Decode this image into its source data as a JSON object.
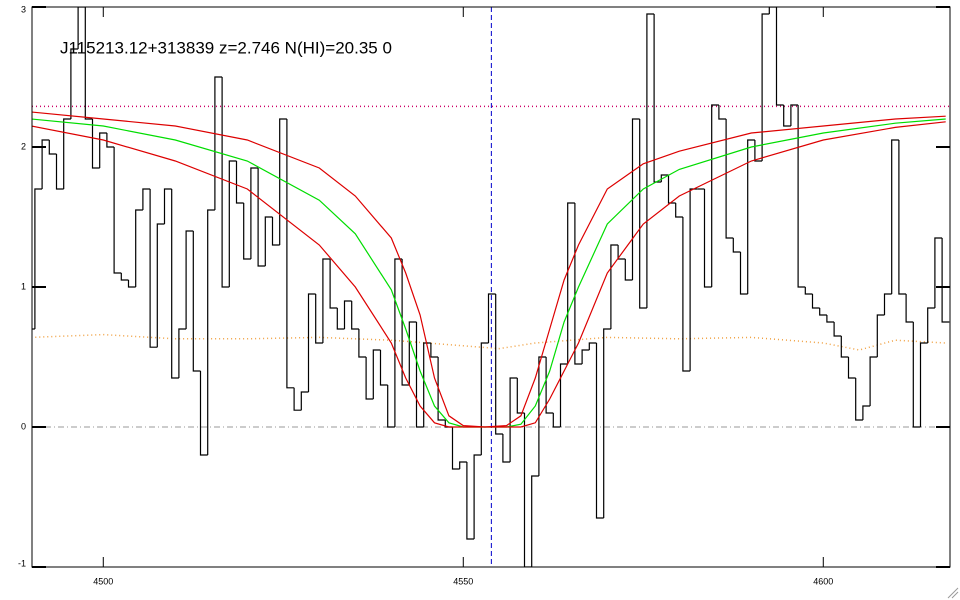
{
  "chart_data": {
    "type": "step",
    "title": "J115213.12+313839 z=2.746 N(HI)=20.35 0",
    "xlim": [
      4490.1,
      4617.6
    ],
    "ylim": [
      -1,
      3
    ],
    "xticks": [
      4500,
      4550,
      4600
    ],
    "yticks": [
      -1,
      0,
      1,
      2,
      3
    ],
    "x": [
      4490,
      4491,
      4492,
      4493,
      4494,
      4495,
      4496,
      4497,
      4498,
      4499,
      4500,
      4501,
      4502,
      4503,
      4504,
      4505,
      4506,
      4507,
      4508,
      4509,
      4510,
      4511,
      4512,
      4513,
      4514,
      4515,
      4516,
      4517,
      4518,
      4519,
      4520,
      4521,
      4522,
      4523,
      4524,
      4525,
      4526,
      4527,
      4528,
      4529,
      4530,
      4531,
      4532,
      4533,
      4534,
      4535,
      4536,
      4537,
      4538,
      4539,
      4540,
      4541,
      4542,
      4543,
      4544,
      4545,
      4546,
      4547,
      4548,
      4549,
      4550,
      4551,
      4552,
      4553,
      4554,
      4555,
      4556,
      4557,
      4558,
      4559,
      4560,
      4561,
      4562,
      4563,
      4564,
      4565,
      4566,
      4567,
      4568,
      4569,
      4570,
      4571,
      4572,
      4573,
      4574,
      4575,
      4576,
      4577,
      4578,
      4579,
      4580,
      4581,
      4582,
      4583,
      4584,
      4585,
      4586,
      4587,
      4588,
      4589,
      4590,
      4591,
      4592,
      4593,
      4594,
      4595,
      4596,
      4597,
      4598,
      4599,
      4600,
      4601,
      4602,
      4603,
      4604,
      4605,
      4606,
      4607,
      4608,
      4609,
      4610,
      4611,
      4612,
      4613,
      4614,
      4615,
      4616,
      4617
    ],
    "values": [
      0.7,
      1.7,
      2.05,
      1.95,
      1.7,
      2.2,
      2.7,
      3.0,
      2.2,
      1.85,
      2.1,
      2.0,
      1.1,
      1.05,
      1.0,
      1.55,
      1.7,
      0.57,
      1.45,
      1.7,
      0.35,
      0.7,
      1.4,
      0.4,
      -0.2,
      1.55,
      2.5,
      1.0,
      1.9,
      1.6,
      1.2,
      1.85,
      1.15,
      1.5,
      1.3,
      2.2,
      0.28,
      0.12,
      0.25,
      0.95,
      0.6,
      1.2,
      0.85,
      0.7,
      0.9,
      0.7,
      0.5,
      0.2,
      0.55,
      0.3,
      0.0,
      1.2,
      0.3,
      0.75,
      0.0,
      0.6,
      0.5,
      0.05,
      0.0,
      -0.3,
      -0.25,
      -0.8,
      -0.2,
      0.6,
      0.95,
      -0.05,
      -0.25,
      0.35,
      0.1,
      -1.0,
      -0.35,
      0.5,
      0.1,
      0.0,
      0.45,
      1.6,
      0.45,
      0.55,
      0.6,
      -0.65,
      0.7,
      1.3,
      1.2,
      1.05,
      2.2,
      0.85,
      2.95,
      1.75,
      1.8,
      1.6,
      1.5,
      0.4,
      1.7,
      1.7,
      1.0,
      2.3,
      2.2,
      1.35,
      1.25,
      0.95,
      2.05,
      1.9,
      2.95,
      3.0,
      2.3,
      2.15,
      2.3,
      1.0,
      0.95,
      0.85,
      0.8,
      0.75,
      0.65,
      0.5,
      0.35,
      0.05,
      0.15,
      0.5,
      0.8,
      0.95,
      2.05,
      0.95,
      0.75,
      0.0,
      0.6,
      0.85,
      1.35,
      0.75
    ],
    "color": "#000000",
    "models": {
      "x": [
        4490,
        4500,
        4510,
        4520,
        4530,
        4535,
        4540,
        4542,
        4544,
        4546,
        4548,
        4550,
        4553,
        4556,
        4558,
        4560,
        4562,
        4564,
        4566,
        4570,
        4575,
        4580,
        4590,
        4600,
        4610,
        4617
      ],
      "series": [
        {
          "color": "#00dd00",
          "values": [
            2.2,
            2.15,
            2.05,
            1.9,
            1.62,
            1.38,
            0.98,
            0.7,
            0.4,
            0.15,
            0.03,
            0,
            0,
            0,
            0.02,
            0.15,
            0.4,
            0.75,
            1.0,
            1.45,
            1.7,
            1.84,
            2.0,
            2.1,
            2.17,
            2.2
          ]
        },
        {
          "color": "#dd0000",
          "values": [
            2.25,
            2.2,
            2.15,
            2.05,
            1.85,
            1.65,
            1.35,
            1.1,
            0.8,
            0.35,
            0.08,
            0.01,
            0,
            0.01,
            0.08,
            0.35,
            0.7,
            1.05,
            1.3,
            1.7,
            1.88,
            1.97,
            2.1,
            2.15,
            2.2,
            2.22
          ]
        },
        {
          "color": "#dd0000",
          "values": [
            2.15,
            2.05,
            1.9,
            1.7,
            1.3,
            1.0,
            0.6,
            0.35,
            0.15,
            0.03,
            0,
            0,
            0,
            0,
            0,
            0.03,
            0.2,
            0.4,
            0.6,
            1.1,
            1.45,
            1.65,
            1.9,
            2.05,
            2.14,
            2.18
          ]
        }
      ]
    },
    "error": {
      "color": "#f0a040",
      "x": [
        4490,
        4500,
        4510,
        4520,
        4530,
        4540,
        4545,
        4550,
        4555,
        4560,
        4570,
        4580,
        4590,
        4595,
        4600,
        4605,
        4610,
        4617
      ],
      "values": [
        0.64,
        0.66,
        0.63,
        0.63,
        0.64,
        0.62,
        0.6,
        0.58,
        0.56,
        0.6,
        0.64,
        0.63,
        0.64,
        0.62,
        0.6,
        0.55,
        0.62,
        0.6
      ]
    },
    "continuum": {
      "value": 2.29,
      "color": "#cc0066"
    },
    "zero_line": {
      "value": 0,
      "color": "#999999"
    },
    "center_line": {
      "value": 4553.9,
      "color": "#0000cc"
    }
  }
}
